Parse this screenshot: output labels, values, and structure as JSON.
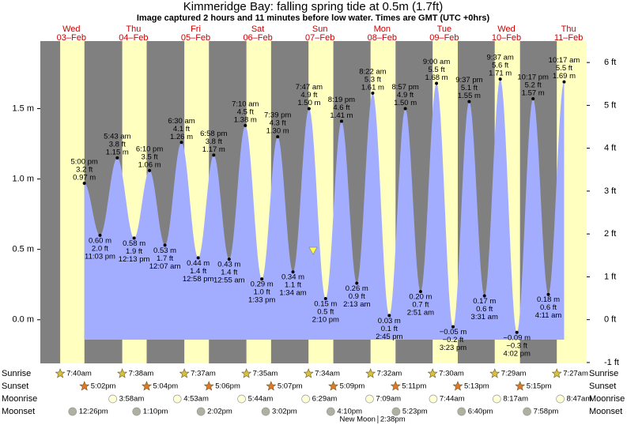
{
  "chart_data": {
    "type": "tide",
    "title": "Kimmeridge Bay: falling  spring tide at 0.5m (1.7ft)",
    "subtitle": "Image captured 2 hours and 11 minutes before low water. Times are GMT (UTC +0hrs)",
    "ylim": [
      -0.31,
      1.98
    ],
    "yticks": [
      {
        "value": 0,
        "label": "0.0 m"
      },
      {
        "value": 0.5,
        "label": "0.5 m"
      },
      {
        "value": 1,
        "label": "1.0 m"
      },
      {
        "value": 1.5,
        "label": "1.5 m"
      }
    ],
    "y2lim": [
      -1.02,
      6.5
    ],
    "y2ticks": [
      {
        "value": -1,
        "label": "-1 ft"
      },
      {
        "value": 0,
        "label": "0 ft"
      },
      {
        "value": 1,
        "label": "1 ft"
      },
      {
        "value": 2,
        "label": "2 ft"
      },
      {
        "value": 3,
        "label": "3 ft"
      },
      {
        "value": 4,
        "label": "4 ft"
      },
      {
        "value": 5,
        "label": "5 ft"
      },
      {
        "value": 6,
        "label": "6 ft"
      }
    ],
    "colors": {
      "night": "#808080",
      "day": "#ffffc0",
      "water": "#a3adff"
    },
    "row_labels": {
      "sunrise": "Sunrise",
      "sunset": "Sunset",
      "moonrise": "Moonrise",
      "moonset": "Moonset"
    },
    "days": [
      {
        "weekday": "Wed",
        "date": "03–Feb",
        "sunrise": "7:40am",
        "sunset": "5:02pm",
        "moonrise": null,
        "moonset": "12:26pm",
        "tides": {
          "times": [
            "5:00 pm",
            "11:03 pm"
          ],
          "values": [
            0.97,
            0.6
          ],
          "value_labels": [
            "0.97 m",
            "0.60 m"
          ],
          "ft_labels": [
            "3.2 ft",
            "2.0 ft"
          ]
        }
      },
      {
        "weekday": "Thu",
        "date": "04–Feb",
        "sunrise": "7:38am",
        "sunset": "5:04pm",
        "moonrise": "3:58am",
        "moonset": "1:10pm",
        "tides": {
          "times": [
            "5:43 am",
            "12:13 pm",
            "6:10 pm"
          ],
          "values": [
            1.15,
            0.58,
            1.06
          ],
          "value_labels": [
            "1.15 m",
            "0.58 m",
            "1.06 m"
          ],
          "ft_labels": [
            "3.8 ft",
            "1.9 ft",
            "3.5 ft"
          ]
        }
      },
      {
        "weekday": "Fri",
        "date": "05–Feb",
        "sunrise": "7:37am",
        "sunset": "5:06pm",
        "moonrise": "4:53am",
        "moonset": "2:02pm",
        "tides": {
          "times": [
            "12:07 am",
            "6:30 am",
            "12:58 pm",
            "6:58 pm"
          ],
          "values": [
            0.53,
            1.26,
            0.44,
            1.17
          ],
          "value_labels": [
            "0.53 m",
            "1.26 m",
            "0.44 m",
            "1.17 m"
          ],
          "ft_labels": [
            "1.7 ft",
            "4.1 ft",
            "1.4 ft",
            "3.8 ft"
          ]
        }
      },
      {
        "weekday": "Sat",
        "date": "06–Feb",
        "sunrise": "7:35am",
        "sunset": "5:07pm",
        "moonrise": "5:44am",
        "moonset": "3:02pm",
        "tides": {
          "times": [
            "12:55 am",
            "7:10 am",
            "1:33 pm",
            "7:39 pm"
          ],
          "values": [
            0.43,
            1.38,
            0.29,
            1.3
          ],
          "value_labels": [
            "0.43 m",
            "1.38 m",
            "0.29 m",
            "1.30 m"
          ],
          "ft_labels": [
            "1.4 ft",
            "4.5 ft",
            "1.0 ft",
            "4.3 ft"
          ]
        }
      },
      {
        "weekday": "Sun",
        "date": "07–Feb",
        "sunrise": "7:34am",
        "sunset": "5:09pm",
        "moonrise": "6:29am",
        "moonset": "4:10pm",
        "tides": {
          "times": [
            "1:34 am",
            "7:47 am",
            "2:10 pm",
            "8:19 pm"
          ],
          "values": [
            0.34,
            1.5,
            0.15,
            1.41
          ],
          "value_labels": [
            "0.34 m",
            "1.50 m",
            "0.15 m",
            "1.41 m"
          ],
          "ft_labels": [
            "1.1 ft",
            "4.9 ft",
            "0.5 ft",
            "4.6 ft"
          ]
        }
      },
      {
        "weekday": "Mon",
        "date": "08–Feb",
        "sunrise": "7:32am",
        "sunset": "5:11pm",
        "moonrise": "7:09am",
        "moonset": "5:23pm",
        "moon_phase": "New Moon",
        "moon_phase_time": "2:38pm",
        "tides": {
          "times": [
            "2:13 am",
            "8:22 am",
            "2:45 pm",
            "8:57 pm"
          ],
          "values": [
            0.26,
            1.61,
            0.03,
            1.5
          ],
          "value_labels": [
            "0.26 m",
            "1.61 m",
            "0.03 m",
            "1.50 m"
          ],
          "ft_labels": [
            "0.9 ft",
            "5.3 ft",
            "0.1 ft",
            "4.9 ft"
          ]
        }
      },
      {
        "weekday": "Tue",
        "date": "09–Feb",
        "sunrise": "7:30am",
        "sunset": "5:13pm",
        "moonrise": "7:44am",
        "moonset": "6:40pm",
        "tides": {
          "times": [
            "2:51 am",
            "9:00 am",
            "3:23 pm",
            "9:37 pm"
          ],
          "values": [
            0.2,
            1.68,
            -0.05,
            1.55
          ],
          "value_labels": [
            "0.20 m",
            "1.68 m",
            "−0.05 m",
            "1.55 m"
          ],
          "ft_labels": [
            "0.7 ft",
            "5.5 ft",
            "−0.2 ft",
            "5.1 ft"
          ]
        }
      },
      {
        "weekday": "Wed",
        "date": "10–Feb",
        "sunrise": "7:29am",
        "sunset": "5:15pm",
        "moonrise": "8:17am",
        "moonset": "7:58pm",
        "tides": {
          "times": [
            "3:31 am",
            "9:37 am",
            "4:02 pm",
            "10:17 pm"
          ],
          "values": [
            0.17,
            1.71,
            -0.09,
            1.57
          ],
          "value_labels": [
            "0.17 m",
            "1.71 m",
            "−0.09 m",
            "1.57 m"
          ],
          "ft_labels": [
            "0.6 ft",
            "5.6 ft",
            "−0.3 ft",
            "5.2 ft"
          ]
        }
      },
      {
        "weekday": "Thu",
        "date": "11–Feb",
        "sunrise": "7:27am",
        "sunset": null,
        "moonrise": "8:47am",
        "moonset": null,
        "tides": {
          "times": [
            "4:11 am",
            "10:17 am"
          ],
          "values": [
            0.18,
            1.69
          ],
          "value_labels": [
            "0.18 m",
            "1.69 m"
          ],
          "ft_labels": [
            "0.6 ft",
            "5.5 ft"
          ]
        }
      }
    ]
  }
}
